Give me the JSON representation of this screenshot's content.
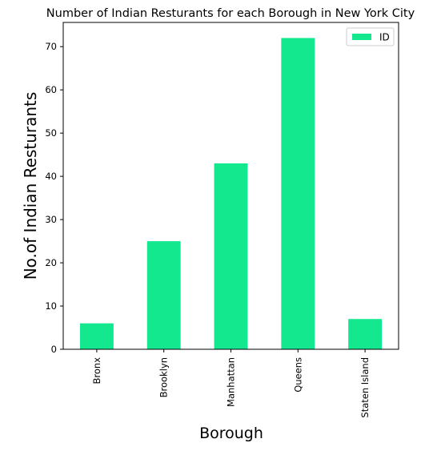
{
  "chart_data": {
    "type": "bar",
    "title": "Number of Indian Resturants for each Borough in New York City",
    "xlabel": "Borough",
    "ylabel": "No.of Indian Resturants",
    "categories": [
      "Bronx",
      "Brooklyn",
      "Manhattan",
      "Queens",
      "Staten Island"
    ],
    "series": [
      {
        "name": "ID",
        "values": [
          6,
          25,
          43,
          72,
          7
        ],
        "color": "#14e88f"
      }
    ],
    "ylim": [
      0,
      75.6
    ],
    "yticks": [
      0,
      10,
      20,
      30,
      40,
      50,
      60,
      70
    ],
    "grid": false,
    "legend_position": "top-right"
  }
}
